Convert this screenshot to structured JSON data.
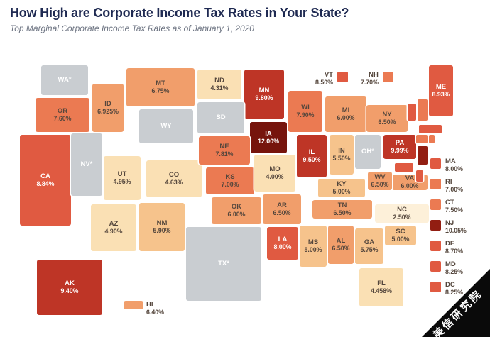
{
  "header": {
    "title": "How High are Corporate Income Tax Rates in Your State?",
    "subtitle": "Top Marginal Corporate Income Tax Rates as of January 1, 2020"
  },
  "colors": {
    "title": "#1F2A52",
    "subtitle": "#6B7280",
    "label_dark": "#54463C",
    "label_light": "#FFFFFF",
    "no_tax": "#C9CDD1",
    "b1": "#FDF0D9",
    "b2": "#FAE0B4",
    "b3": "#F6C38C",
    "b4": "#F19E6B",
    "b5": "#EB7A52",
    "b6": "#E05A41",
    "b7": "#BE3526",
    "b8": "#921E12",
    "b9": "#76140C",
    "watermark_bg": "#0A0A0A",
    "watermark_text": "#FFFFFF"
  },
  "chart_data": {
    "type": "heatmap",
    "subtype": "us-choropleth-map",
    "title": "How High are Corporate Income Tax Rates in Your State?",
    "subtitle": "Top Marginal Corporate Income Tax Rates as of January 1, 2020",
    "unit": "%",
    "states": [
      {
        "abbr": "AK",
        "label": "AK",
        "display": "9.40%",
        "value": 9.4,
        "bucket": "b7"
      },
      {
        "abbr": "AL",
        "label": "AL",
        "display": "6.50%",
        "value": 6.5,
        "bucket": "b4"
      },
      {
        "abbr": "AR",
        "label": "AR",
        "display": "6.50%",
        "value": 6.5,
        "bucket": "b4"
      },
      {
        "abbr": "AZ",
        "label": "AZ",
        "display": "4.90%",
        "value": 4.9,
        "bucket": "b2"
      },
      {
        "abbr": "CA",
        "label": "CA",
        "display": "8.84%",
        "value": 8.84,
        "bucket": "b6"
      },
      {
        "abbr": "CO",
        "label": "CO",
        "display": "4.63%",
        "value": 4.63,
        "bucket": "b2"
      },
      {
        "abbr": "CT",
        "label": "CT",
        "display": "7.50%",
        "value": 7.5,
        "bucket": "b5",
        "sliver": true
      },
      {
        "abbr": "DC",
        "label": "DC",
        "display": "8.25%",
        "value": 8.25,
        "bucket": "b6",
        "sliver": true
      },
      {
        "abbr": "DE",
        "label": "DE",
        "display": "8.70%",
        "value": 8.7,
        "bucket": "b6",
        "sliver": true
      },
      {
        "abbr": "FL",
        "label": "FL",
        "display": "4.458%",
        "value": 4.458,
        "bucket": "b2"
      },
      {
        "abbr": "GA",
        "label": "GA",
        "display": "5.75%",
        "value": 5.75,
        "bucket": "b3"
      },
      {
        "abbr": "HI",
        "label": "HI",
        "display": "6.40%",
        "value": 6.4,
        "bucket": "b4"
      },
      {
        "abbr": "IA",
        "label": "IA",
        "display": "12.00%",
        "value": 12.0,
        "bucket": "b9"
      },
      {
        "abbr": "ID",
        "label": "ID",
        "display": "6.925%",
        "value": 6.925,
        "bucket": "b4"
      },
      {
        "abbr": "IL",
        "label": "IL",
        "display": "9.50%",
        "value": 9.5,
        "bucket": "b7"
      },
      {
        "abbr": "IN",
        "label": "IN",
        "display": "5.50%",
        "value": 5.5,
        "bucket": "b3"
      },
      {
        "abbr": "KS",
        "label": "KS",
        "display": "7.00%",
        "value": 7.0,
        "bucket": "b5"
      },
      {
        "abbr": "KY",
        "label": "KY",
        "display": "5.00%",
        "value": 5.0,
        "bucket": "b3"
      },
      {
        "abbr": "LA",
        "label": "LA",
        "display": "8.00%",
        "value": 8.0,
        "bucket": "b6"
      },
      {
        "abbr": "MA",
        "label": "MA",
        "display": "8.00%",
        "value": 8.0,
        "bucket": "b6",
        "sliver": true
      },
      {
        "abbr": "MD",
        "label": "MD",
        "display": "8.25%",
        "value": 8.25,
        "bucket": "b6",
        "sliver": true
      },
      {
        "abbr": "ME",
        "label": "ME",
        "display": "8.93%",
        "value": 8.93,
        "bucket": "b6"
      },
      {
        "abbr": "MI",
        "label": "MI",
        "display": "6.00%",
        "value": 6.0,
        "bucket": "b4"
      },
      {
        "abbr": "MN",
        "label": "MN",
        "display": "9.80%",
        "value": 9.8,
        "bucket": "b7"
      },
      {
        "abbr": "MO",
        "label": "MO",
        "display": "4.00%",
        "value": 4.0,
        "bucket": "b2"
      },
      {
        "abbr": "MS",
        "label": "MS",
        "display": "5.00%",
        "value": 5.0,
        "bucket": "b3"
      },
      {
        "abbr": "MT",
        "label": "MT",
        "display": "6.75%",
        "value": 6.75,
        "bucket": "b4"
      },
      {
        "abbr": "NC",
        "label": "NC",
        "display": "2.50%",
        "value": 2.5,
        "bucket": "b1"
      },
      {
        "abbr": "ND",
        "label": "ND",
        "display": "4.31%",
        "value": 4.31,
        "bucket": "b2"
      },
      {
        "abbr": "NE",
        "label": "NE",
        "display": "7.81%",
        "value": 7.81,
        "bucket": "b5"
      },
      {
        "abbr": "NH",
        "label": "NH",
        "display": "7.70%",
        "value": 7.7,
        "bucket": "b5",
        "sliver": true
      },
      {
        "abbr": "NJ",
        "label": "NJ",
        "display": "10.05%",
        "value": 10.05,
        "bucket": "b8",
        "sliver": true
      },
      {
        "abbr": "NM",
        "label": "NM",
        "display": "5.90%",
        "value": 5.9,
        "bucket": "b3"
      },
      {
        "abbr": "NV",
        "label": "NV*",
        "display": "",
        "value": null,
        "bucket": "no_tax"
      },
      {
        "abbr": "NY",
        "label": "NY",
        "display": "6.50%",
        "value": 6.5,
        "bucket": "b4"
      },
      {
        "abbr": "OH",
        "label": "OH*",
        "display": "",
        "value": null,
        "bucket": "no_tax"
      },
      {
        "abbr": "OK",
        "label": "OK",
        "display": "6.00%",
        "value": 6.0,
        "bucket": "b4"
      },
      {
        "abbr": "OR",
        "label": "OR",
        "display": "7.60%",
        "value": 7.6,
        "bucket": "b5"
      },
      {
        "abbr": "PA",
        "label": "PA",
        "display": "9.99%",
        "value": 9.99,
        "bucket": "b7"
      },
      {
        "abbr": "RI",
        "label": "RI",
        "display": "7.00%",
        "value": 7.0,
        "bucket": "b5",
        "sliver": true
      },
      {
        "abbr": "SC",
        "label": "SC",
        "display": "5.00%",
        "value": 5.0,
        "bucket": "b3"
      },
      {
        "abbr": "SD",
        "label": "SD",
        "display": "",
        "value": null,
        "bucket": "no_tax"
      },
      {
        "abbr": "TN",
        "label": "TN",
        "display": "6.50%",
        "value": 6.5,
        "bucket": "b4"
      },
      {
        "abbr": "TX",
        "label": "TX*",
        "display": "",
        "value": null,
        "bucket": "no_tax"
      },
      {
        "abbr": "UT",
        "label": "UT",
        "display": "4.95%",
        "value": 4.95,
        "bucket": "b2"
      },
      {
        "abbr": "VA",
        "label": "VA",
        "display": "6.00%",
        "value": 6.0,
        "bucket": "b4"
      },
      {
        "abbr": "VT",
        "label": "VT",
        "display": "8.50%",
        "value": 8.5,
        "bucket": "b6",
        "sliver": true
      },
      {
        "abbr": "WA",
        "label": "WA*",
        "display": "",
        "value": null,
        "bucket": "no_tax"
      },
      {
        "abbr": "WI",
        "label": "WI",
        "display": "7.90%",
        "value": 7.9,
        "bucket": "b5"
      },
      {
        "abbr": "WV",
        "label": "WV",
        "display": "6.50%",
        "value": 6.5,
        "bucket": "b4"
      },
      {
        "abbr": "WY",
        "label": "WY",
        "display": "",
        "value": null,
        "bucket": "no_tax"
      }
    ]
  },
  "callouts": {
    "top": [
      "VT",
      "NH"
    ],
    "right": [
      "MA",
      "RI",
      "CT",
      "NJ",
      "DE",
      "MD",
      "DC"
    ]
  },
  "watermark": {
    "text": "美信研究院"
  }
}
